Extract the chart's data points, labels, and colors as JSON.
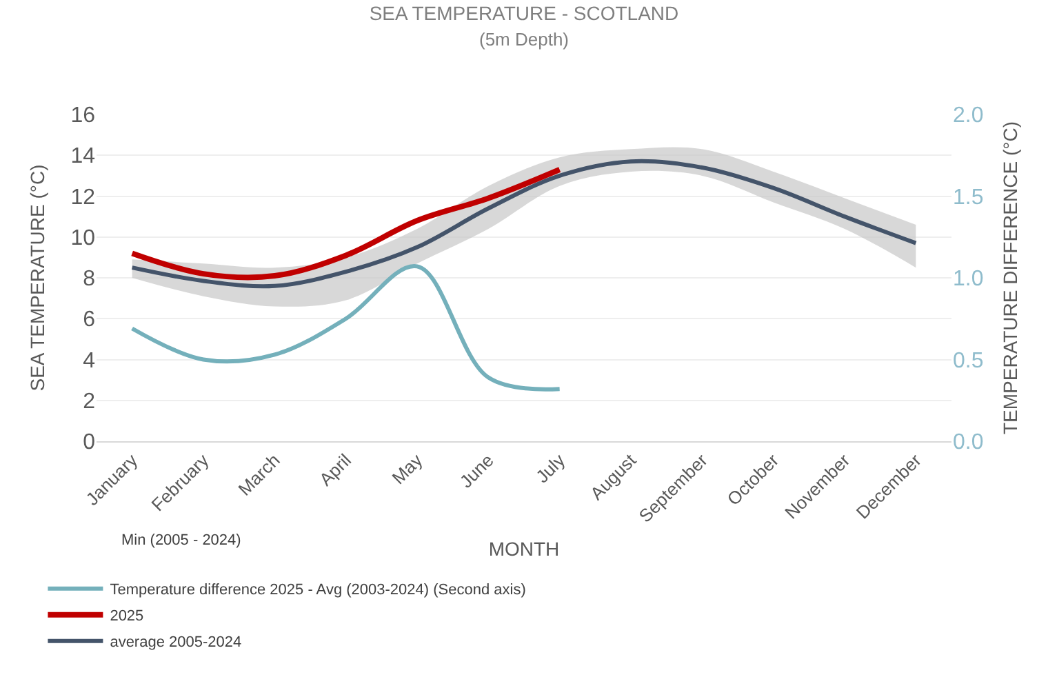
{
  "chart_data": {
    "type": "line",
    "title": "SEA TEMPERATURE - SCOTLAND",
    "subtitle": "(5m Depth)",
    "xlabel": "MONTH",
    "ylabel": "SEA TEMPERATURE (°C)",
    "y2label": "TEMPERATURE DIFFERENCE (°C)",
    "categories": [
      "January",
      "February",
      "March",
      "April",
      "May",
      "June",
      "July",
      "August",
      "September",
      "October",
      "November",
      "December"
    ],
    "series": [
      {
        "name": "average 2005-2024",
        "color": "#44546a",
        "values": [
          8.5,
          7.85,
          7.6,
          8.3,
          9.5,
          11.4,
          13.0,
          13.7,
          13.4,
          12.4,
          11.0,
          9.7
        ],
        "lower": [
          8.0,
          7.1,
          6.6,
          6.9,
          8.7,
          10.4,
          12.5,
          13.2,
          13.0,
          11.7,
          10.4,
          8.5
        ],
        "upper": [
          8.9,
          8.7,
          8.5,
          9.0,
          10.4,
          12.5,
          13.9,
          14.3,
          14.3,
          13.2,
          11.9,
          10.6
        ]
      },
      {
        "name": "2025",
        "color": "#c00000",
        "values": [
          9.2,
          8.2,
          8.1,
          9.1,
          10.8,
          11.9,
          13.3,
          null,
          null,
          null,
          null,
          null
        ]
      },
      {
        "name": "Temperature difference 2025 - Avg (2003-2024) (Second axis)",
        "color": "#74b0bb",
        "axis": "y2",
        "values": [
          0.69,
          0.5,
          0.53,
          0.75,
          1.07,
          0.39,
          0.32,
          null,
          null,
          null,
          null,
          null
        ]
      }
    ],
    "ylim": [
      0,
      16
    ],
    "yticks": [
      0,
      2,
      4,
      6,
      8,
      10,
      12,
      14,
      16
    ],
    "y2lim": [
      0,
      2
    ],
    "y2ticks": [
      {
        "value": 0,
        "label": "0.0"
      },
      {
        "value": 0.5,
        "label": "0.5"
      },
      {
        "value": 1,
        "label": "1.0"
      },
      {
        "value": 1.5,
        "label": "1.5"
      },
      {
        "value": 2,
        "label": "2.0"
      }
    ],
    "annotations": [
      "Min (2005 - 2024)"
    ],
    "grid": "y",
    "legend": "bottom left",
    "marker": "none",
    "line_style": "solid"
  }
}
